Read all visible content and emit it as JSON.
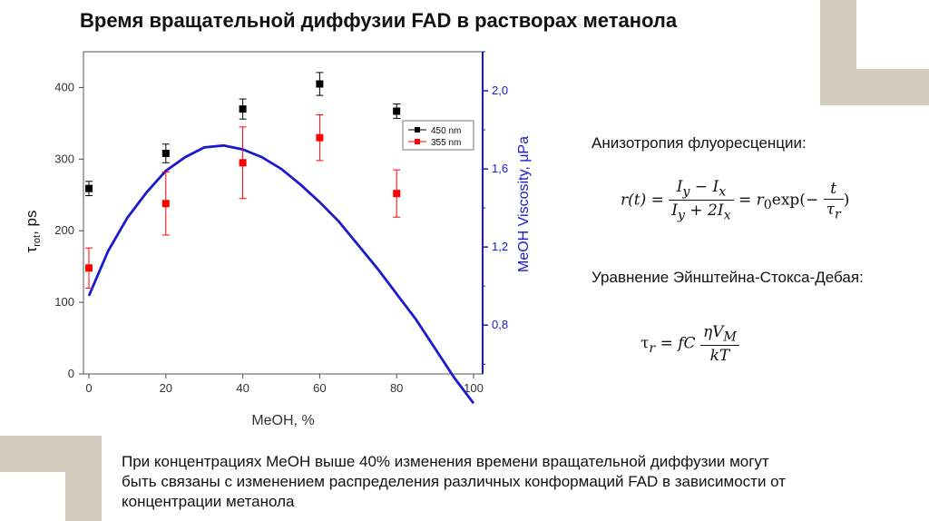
{
  "slide": {
    "title": "Время вращательной диффузии FAD в растворах метанола",
    "anisotropy_label": "Анизотропия флуоресценции:",
    "stokes_label": "Уравнение Эйнштейна-Стокса-Дебая:",
    "bottom_note_lines": [
      "При концентрациях MeOH выше 40% изменения времени вращательной диффузии могут",
      "быть связаны с изменением распределения различных конформаций FAD в зависимости от",
      "концентрации метанола"
    ],
    "formula1": {
      "lhs": "r(t) =",
      "num": "I",
      "num_sub1": "y",
      "num_mid": " − I",
      "num_sub2": "x",
      "den": "I",
      "den_sub1": "y",
      "den_mid": " + 2I",
      "den_sub2": "x",
      "eq": " = r",
      "r0_sub": "0",
      "exp": "exp(−",
      "t_num": "t",
      "t_den": "τ",
      "t_den_sub": "r",
      "close": ")"
    },
    "formula2": {
      "lhs": "τ",
      "lhs_sub": "r",
      "eq": " = fC",
      "num": "ηV",
      "num_sub": "M",
      "den": "kT"
    },
    "colors": {
      "deco_frame": "#d3cbbd",
      "series_450": "#000000",
      "series_355": "#ff0000",
      "viscosity": "#1a1acc",
      "right_axis": "#1a1acc"
    }
  },
  "chart_data": {
    "type": "scatter",
    "xlabel": "MeOH, %",
    "ylabel": "τ_rot, ps",
    "ylabel_main": "τ",
    "ylabel_sub": "rot",
    "ylabel_rest": ", ps",
    "y2label": "MeOH Viscosity, μPa",
    "xlim": [
      0,
      100
    ],
    "ylim": [
      0,
      450
    ],
    "y2lim": [
      0.55,
      2.2
    ],
    "x_ticks": [
      0,
      20,
      40,
      60,
      80,
      100
    ],
    "x_tick_labels": [
      "0",
      "20",
      "40",
      "60",
      "80",
      "100"
    ],
    "y_ticks": [
      0,
      100,
      200,
      300,
      400
    ],
    "y_tick_labels": [
      "0",
      "100",
      "200",
      "300",
      "400"
    ],
    "y2_ticks": [
      0.8,
      1.2,
      1.6,
      2.0
    ],
    "y2_tick_labels": [
      "0,8",
      "1,2",
      "1,6",
      "2,0"
    ],
    "legend_position": "top-right",
    "series": [
      {
        "name": "450 nm",
        "color": "#000000",
        "x": [
          0,
          20,
          40,
          60,
          80
        ],
        "y": [
          259,
          308,
          370,
          405,
          367
        ],
        "err": [
          10,
          13,
          14,
          16,
          10
        ]
      },
      {
        "name": "355 nm",
        "color": "#ff0000",
        "x": [
          0,
          20,
          40,
          60,
          80
        ],
        "y": [
          148,
          238,
          295,
          330,
          252
        ],
        "err": [
          28,
          44,
          50,
          32,
          33
        ]
      }
    ],
    "viscosity_curve": {
      "color": "#1a1acc",
      "x": [
        0,
        5,
        10,
        15,
        20,
        25,
        30,
        35,
        40,
        45,
        50,
        55,
        60,
        65,
        70,
        75,
        80,
        85,
        90,
        95,
        100
      ],
      "y": [
        0.95,
        1.18,
        1.35,
        1.48,
        1.59,
        1.66,
        1.71,
        1.72,
        1.7,
        1.66,
        1.6,
        1.52,
        1.43,
        1.33,
        1.21,
        1.09,
        0.96,
        0.83,
        0.68,
        0.53,
        0.4
      ]
    }
  }
}
